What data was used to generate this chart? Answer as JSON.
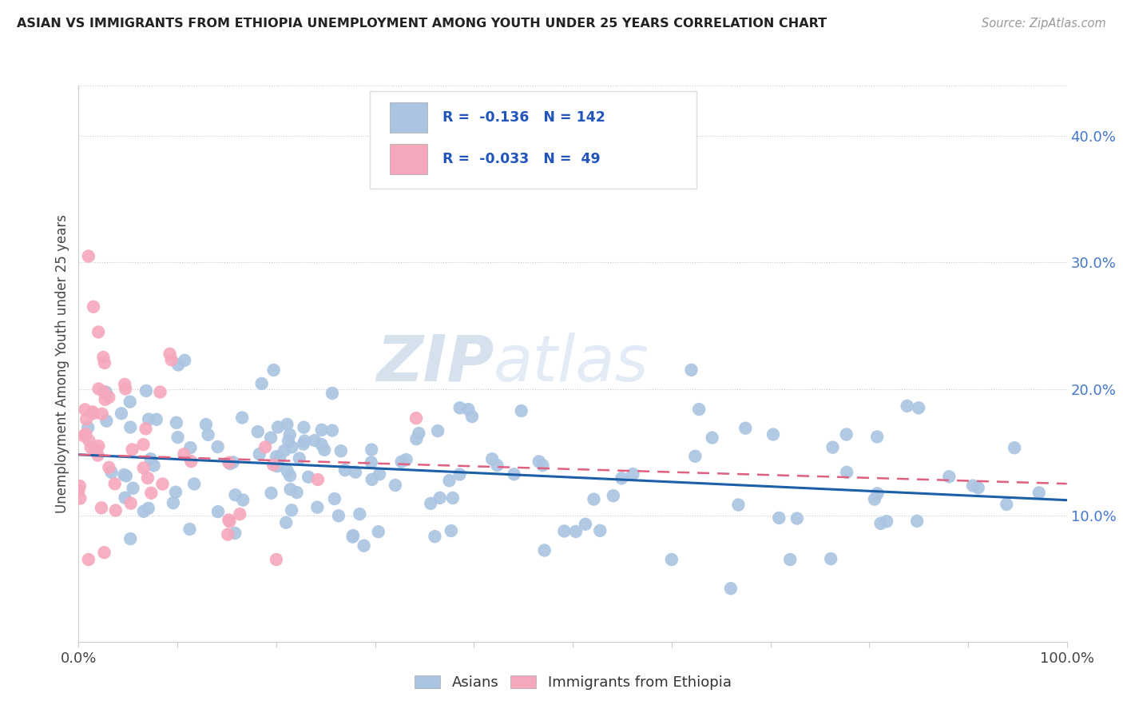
{
  "title": "ASIAN VS IMMIGRANTS FROM ETHIOPIA UNEMPLOYMENT AMONG YOUTH UNDER 25 YEARS CORRELATION CHART",
  "source": "Source: ZipAtlas.com",
  "ylabel": "Unemployment Among Youth under 25 years",
  "legend_label1": "Asians",
  "legend_label2": "Immigrants from Ethiopia",
  "r1": "-0.136",
  "n1": "142",
  "r2": "-0.033",
  "n2": "49",
  "color_asian": "#aac4e2",
  "color_ethiopia": "#f5a8bc",
  "color_asian_line": "#1a5fa8",
  "color_ethiopia_line": "#e06080",
  "background_color": "#ffffff",
  "grid_color": "#c8c8c8",
  "watermark_zip": "ZIP",
  "watermark_atlas": "atlas",
  "ytick_vals": [
    0.1,
    0.2,
    0.3,
    0.4
  ],
  "ytick_labels": [
    "10.0%",
    "20.0%",
    "30.0%",
    "40.0%"
  ],
  "xlim": [
    0.0,
    1.0
  ],
  "ylim": [
    0.0,
    0.44
  ],
  "seed": 12
}
